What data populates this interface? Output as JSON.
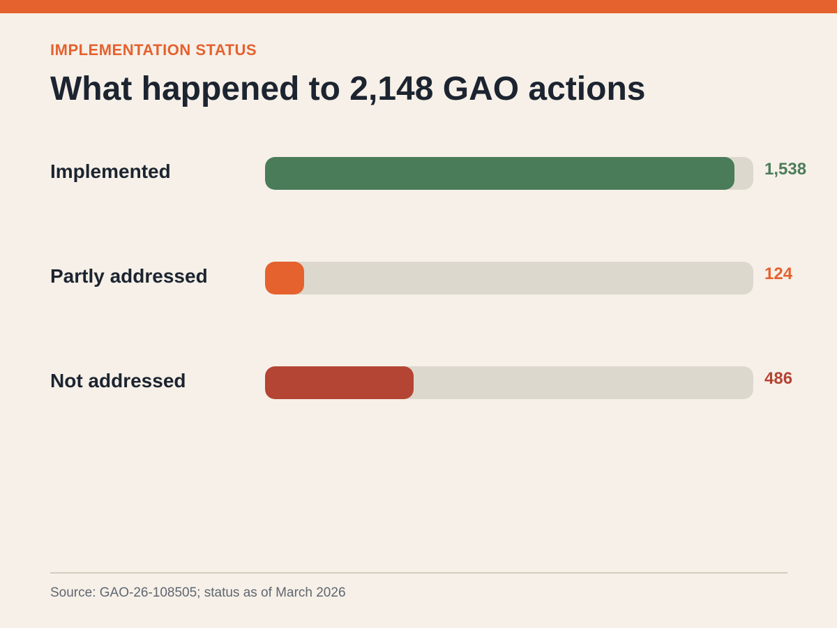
{
  "header": {
    "eyebrow": "IMPLEMENTATION STATUS",
    "title": "What happened to 2,148 GAO actions"
  },
  "footer": {
    "source": "Source: GAO-26-108505; status as of March 2026"
  },
  "colors": {
    "accent": "#e5612e",
    "implemented": "#4a7c59",
    "partly": "#e5612e",
    "not": "#b44433",
    "track": "#ddd8cd",
    "background": "#f6f0e8"
  },
  "chart_data": {
    "type": "bar",
    "orientation": "horizontal",
    "categories": [
      "Implemented",
      "Partly addressed",
      "Not addressed"
    ],
    "values": [
      1538,
      124,
      486
    ],
    "value_labels": [
      "1,538",
      "124",
      "486"
    ],
    "xlim": [
      0,
      1600
    ],
    "colors": [
      "#4a7c59",
      "#e5612e",
      "#b44433"
    ]
  }
}
